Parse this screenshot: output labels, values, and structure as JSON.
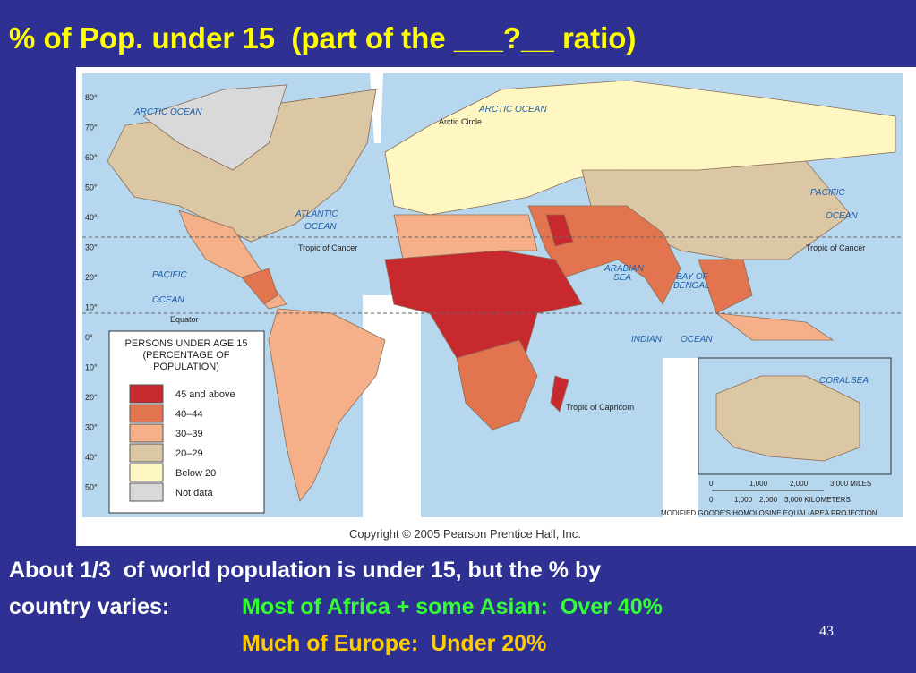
{
  "title": "% of Pop. under 15  (part of the ___?__ ratio)",
  "map": {
    "legend": {
      "title_lines": [
        "PERSONS UNDER AGE 15",
        "(PERCENTAGE OF",
        "POPULATION)"
      ],
      "items": [
        {
          "label": "45 and above",
          "color": "#c8292e"
        },
        {
          "label": "40–44",
          "color": "#e2744f"
        },
        {
          "label": "30–39",
          "color": "#f5b08a"
        },
        {
          "label": "20–29",
          "color": "#dcc7a4"
        },
        {
          "label": "Below 20",
          "color": "#fff7c2"
        },
        {
          "label": "Not data",
          "color": "#d9d9d9"
        }
      ]
    },
    "labels": {
      "arctic_ocean_1": "ARCTIC OCEAN",
      "arctic_ocean_2": "ARCTIC OCEAN",
      "arctic_circle": "Arctic Circle",
      "atlantic": "ATLANTIC",
      "atlantic_ocean": "OCEAN",
      "pacific_w": "PACIFIC",
      "pacific_w_ocean": "OCEAN",
      "pacific_e": "PACIFIC",
      "pacific_e_ocean": "OCEAN",
      "cancer_w": "Tropic of Cancer",
      "cancer_e": "Tropic of Cancer",
      "equator": "Equator",
      "indian": "INDIAN",
      "indian_ocean": "OCEAN",
      "arabian": "ARABIAN",
      "arabian_sea": "SEA",
      "bengal": "BAY OF",
      "bengal_2": "BENGAL",
      "capricorn": "Tropic of Capricorn",
      "coral": "CORAL",
      "coral_sea": "SEA"
    },
    "lat_labels": [
      "80°",
      "70°",
      "60°",
      "50°",
      "40°",
      "30°",
      "20°",
      "10°",
      "0°",
      "10°",
      "20°",
      "30°",
      "40°",
      "50°"
    ],
    "scale_miles": [
      "0",
      "1,000",
      "2,000",
      "3,000 MILES"
    ],
    "scale_km": [
      "0",
      "1,000",
      "2,000",
      "3,000 KILOMETERS"
    ],
    "projection": "MODIFIED GOODE'S HOMOLOSINE EQUAL-AREA PROJECTION",
    "copyright": "Copyright © 2005 Pearson Prentice Hall, Inc."
  },
  "body": {
    "line1": "About 1/3  of world population is under 15, but the % by",
    "line2_lead": "country varies:",
    "line2_highlight": "Most of Africa + some Asian:  Over 40%",
    "line3": "Much of Europe:  Under 20%"
  },
  "page_number": "43"
}
